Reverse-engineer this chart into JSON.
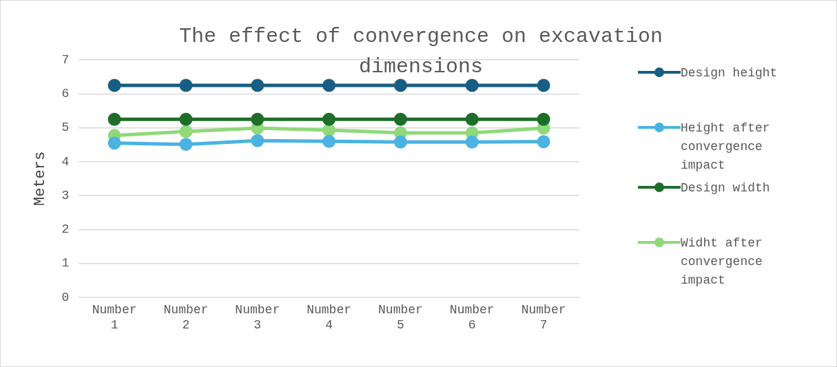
{
  "chart_data": {
    "type": "line",
    "title": "The effect of convergence on excavation dimensions",
    "ylabel": "Meters",
    "categories": [
      "Number 1",
      "Number 2",
      "Number 3",
      "Number 4",
      "Number 5",
      "Number 6",
      "Number 7"
    ],
    "series": [
      {
        "name": "Design height",
        "color": "#175e82",
        "values": [
          6.25,
          6.25,
          6.25,
          6.25,
          6.25,
          6.25,
          6.25
        ]
      },
      {
        "name": "Height after convergence impact",
        "color": "#4ab3e2",
        "values": [
          4.55,
          4.51,
          4.62,
          4.6,
          4.58,
          4.58,
          4.59
        ]
      },
      {
        "name": "Design width",
        "color": "#1e6e2a",
        "values": [
          5.25,
          5.25,
          5.25,
          5.25,
          5.25,
          5.25,
          5.25
        ]
      },
      {
        "name": "Widht after convergence impact",
        "color": "#8fd97a",
        "values": [
          4.77,
          4.89,
          4.99,
          4.93,
          4.85,
          4.85,
          4.99
        ]
      }
    ],
    "ylim": [
      0,
      7
    ],
    "yticks": [
      0,
      1,
      2,
      3,
      4,
      5,
      6,
      7
    ],
    "grid": "y",
    "legend": "right",
    "marker": "circle",
    "line_style": "solid"
  }
}
